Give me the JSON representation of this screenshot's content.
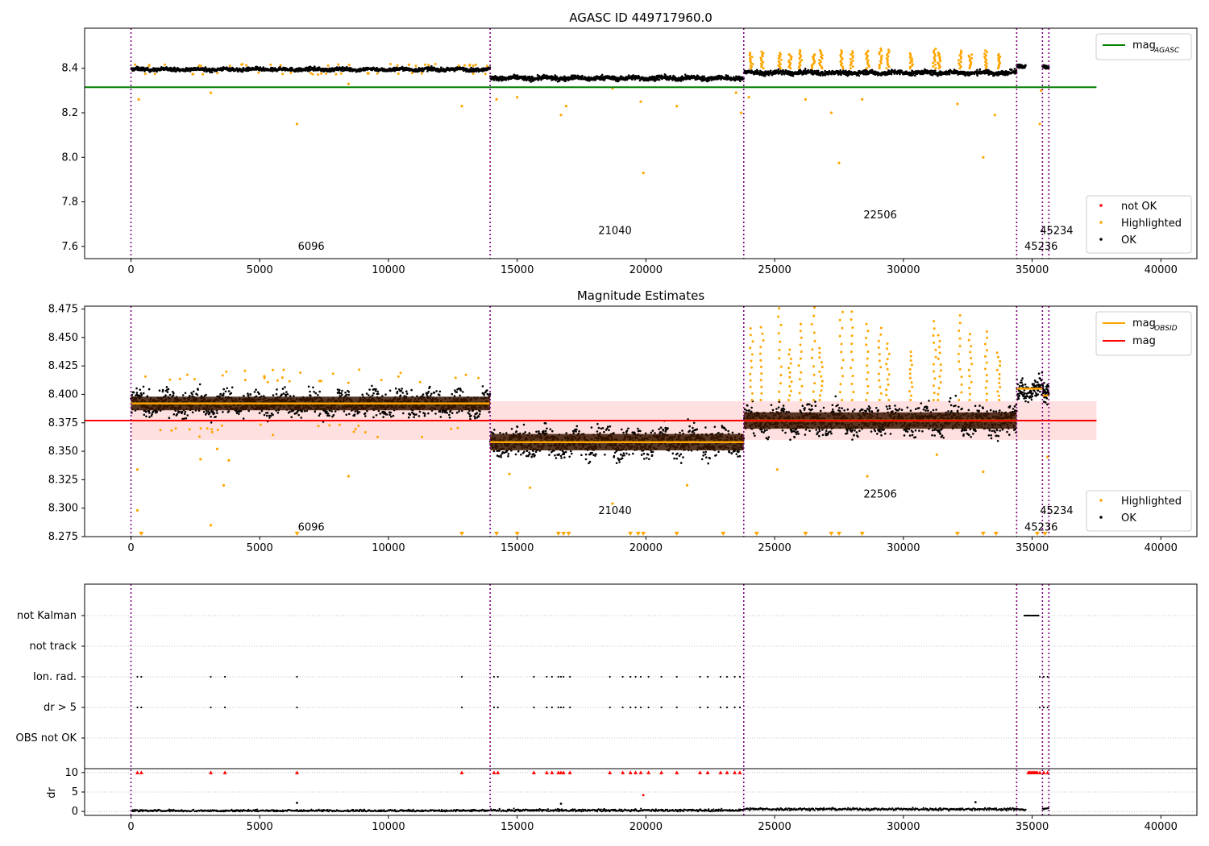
{
  "chart_data": [
    {
      "type": "scatter",
      "title": "AGASC ID 449717960.0",
      "xlim": [
        -1800,
        41400
      ],
      "ylim": [
        7.545,
        8.58
      ],
      "xticks": [
        "0",
        "5000",
        "10000",
        "15000",
        "20000",
        "25000",
        "30000",
        "35000",
        "40000"
      ],
      "xtick_values": [
        0,
        5000,
        10000,
        15000,
        20000,
        25000,
        30000,
        35000,
        40000
      ],
      "yticks": [
        "7.6",
        "7.8",
        "8.0",
        "8.2",
        "8.4"
      ],
      "ytick_values": [
        7.6,
        7.8,
        8.0,
        8.2,
        8.4
      ],
      "obs_boundaries": [
        0,
        13950,
        23800,
        34400,
        35400,
        35650
      ],
      "obs_labels": [
        {
          "text": "6096",
          "x": 7000,
          "y": 7.6
        },
        {
          "text": "21040",
          "x": 18800,
          "y": 7.67
        },
        {
          "text": "22506",
          "x": 29100,
          "y": 7.74
        },
        {
          "text": "45234",
          "x": 35950,
          "y": 7.67
        },
        {
          "text": "45236",
          "x": 35350,
          "y": 7.6
        }
      ],
      "legend_top": {
        "position": "upper right",
        "entries": [
          {
            "label": "mag",
            "sub": "AGASC",
            "color": "#008000"
          }
        ]
      },
      "legend_bottom": {
        "position": "lower right",
        "entries": [
          {
            "label": "not OK",
            "color": "#ff0000"
          },
          {
            "label": "Highlighted",
            "color": "#ffa500"
          },
          {
            "label": "OK",
            "color": "#000000"
          }
        ]
      },
      "mag_agasc": {
        "value": 8.315,
        "x_range": [
          -1800,
          37500
        ],
        "color": "#008000"
      },
      "segments": [
        {
          "x0": 0,
          "x1": 13950,
          "level": 8.395,
          "spread": 0.008
        },
        {
          "x0": 13950,
          "x1": 23800,
          "level": 8.356,
          "spread": 0.01
        },
        {
          "x0": 23800,
          "x1": 34400,
          "level": 8.38,
          "spread": 0.01
        },
        {
          "x0": 34400,
          "x1": 34750,
          "level": 8.41,
          "spread": 0.008
        },
        {
          "x0": 35400,
          "x1": 35650,
          "level": 8.405,
          "spread": 0.008
        }
      ],
      "highlighted_points": [
        {
          "x": 6450,
          "y": 8.15
        },
        {
          "x": 3100,
          "y": 8.29
        },
        {
          "x": 300,
          "y": 8.26
        },
        {
          "x": 12850,
          "y": 8.23
        },
        {
          "x": 8450,
          "y": 8.33
        },
        {
          "x": 14200,
          "y": 8.26
        },
        {
          "x": 15000,
          "y": 8.27
        },
        {
          "x": 16700,
          "y": 8.19
        },
        {
          "x": 16900,
          "y": 8.23
        },
        {
          "x": 18700,
          "y": 8.31
        },
        {
          "x": 19900,
          "y": 7.93
        },
        {
          "x": 19800,
          "y": 8.25
        },
        {
          "x": 21200,
          "y": 8.23
        },
        {
          "x": 23700,
          "y": 8.2
        },
        {
          "x": 23500,
          "y": 8.29
        },
        {
          "x": 27200,
          "y": 8.2
        },
        {
          "x": 27500,
          "y": 7.975
        },
        {
          "x": 28400,
          "y": 8.26
        },
        {
          "x": 26200,
          "y": 8.26
        },
        {
          "x": 32100,
          "y": 8.24
        },
        {
          "x": 33100,
          "y": 8.0
        },
        {
          "x": 33550,
          "y": 8.19
        },
        {
          "x": 35300,
          "y": 8.15
        },
        {
          "x": 35350,
          "y": 8.3
        },
        {
          "x": 24000,
          "y": 8.27
        }
      ],
      "peaks": [
        24100,
        24500,
        25200,
        25600,
        26000,
        26500,
        26800,
        27600,
        28000,
        28600,
        29100,
        29400,
        30300,
        31200,
        31400,
        32200,
        32600,
        33200,
        33700
      ]
    },
    {
      "type": "scatter",
      "title": "Magnitude Estimates",
      "xlim": [
        -1800,
        41400
      ],
      "ylim": [
        8.275,
        8.4775
      ],
      "xticks": [
        "0",
        "5000",
        "10000",
        "15000",
        "20000",
        "25000",
        "30000",
        "35000",
        "40000"
      ],
      "xtick_values": [
        0,
        5000,
        10000,
        15000,
        20000,
        25000,
        30000,
        35000,
        40000
      ],
      "yticks": [
        "8.275",
        "8.300",
        "8.325",
        "8.350",
        "8.375",
        "8.400",
        "8.425",
        "8.450",
        "8.475"
      ],
      "ytick_values": [
        8.275,
        8.3,
        8.325,
        8.35,
        8.375,
        8.4,
        8.425,
        8.45,
        8.475
      ],
      "obs_boundaries": [
        0,
        13950,
        23800,
        34400,
        35400,
        35650
      ],
      "obs_labels": [
        {
          "text": "6096",
          "x": 7000,
          "y": 8.283
        },
        {
          "text": "21040",
          "x": 18800,
          "y": 8.2975
        },
        {
          "text": "22506",
          "x": 29100,
          "y": 8.312
        },
        {
          "text": "45234",
          "x": 35950,
          "y": 8.2975
        },
        {
          "text": "45236",
          "x": 35350,
          "y": 8.283
        }
      ],
      "legend_top": {
        "position": "upper right",
        "entries": [
          {
            "label": "mag",
            "sub": "OBSID",
            "color": "#ffa500"
          },
          {
            "label": "mag",
            "sub": "",
            "color": "#ff0000"
          }
        ]
      },
      "legend_bottom": {
        "position": "lower right",
        "entries": [
          {
            "label": "Highlighted",
            "color": "#ffa500"
          },
          {
            "label": "OK",
            "color": "#000000"
          }
        ]
      },
      "mag": {
        "value": 8.377,
        "band": [
          8.36,
          8.394
        ],
        "x_range": [
          -1800,
          37500
        ],
        "color": "#ff0000"
      },
      "mag_obsid": [
        {
          "x0": 0,
          "x1": 13950,
          "value": 8.392
        },
        {
          "x0": 13950,
          "x1": 23800,
          "value": 8.358
        },
        {
          "x0": 23800,
          "x1": 34400,
          "value": 8.377
        },
        {
          "x0": 34400,
          "x1": 35400,
          "value": 8.405
        },
        {
          "x0": 35400,
          "x1": 35650,
          "value": 8.399
        }
      ],
      "segments": [
        {
          "x0": 0,
          "x1": 13950,
          "level": 8.392,
          "spread": 0.01
        },
        {
          "x0": 13950,
          "x1": 23800,
          "level": 8.358,
          "spread": 0.012
        },
        {
          "x0": 23800,
          "x1": 34400,
          "level": 8.377,
          "spread": 0.012
        },
        {
          "x0": 34400,
          "x1": 35400,
          "level": 8.405,
          "spread": 0.01
        },
        {
          "x0": 35400,
          "x1": 35650,
          "level": 8.399,
          "spread": 0.01
        }
      ],
      "highlighted_points": [
        {
          "x": 3100,
          "y": 8.285
        },
        {
          "x": 3600,
          "y": 8.32
        },
        {
          "x": 2700,
          "y": 8.343
        },
        {
          "x": 3800,
          "y": 8.342
        },
        {
          "x": 3350,
          "y": 8.352
        },
        {
          "x": 8450,
          "y": 8.328
        },
        {
          "x": 250,
          "y": 8.298
        },
        {
          "x": 250,
          "y": 8.334
        },
        {
          "x": 14700,
          "y": 8.33
        },
        {
          "x": 15500,
          "y": 8.318
        },
        {
          "x": 18700,
          "y": 8.304
        },
        {
          "x": 21600,
          "y": 8.32
        },
        {
          "x": 25100,
          "y": 8.334
        },
        {
          "x": 28600,
          "y": 8.328
        },
        {
          "x": 31300,
          "y": 8.347
        },
        {
          "x": 33100,
          "y": 8.332
        },
        {
          "x": 35600,
          "y": 8.345
        }
      ],
      "triangles_x": [
        400,
        6450,
        12850,
        14200,
        15000,
        16600,
        16800,
        17000,
        19400,
        19700,
        19900,
        21200,
        23000,
        24300,
        26200,
        27200,
        27500,
        28400,
        32100,
        33100,
        33600,
        35200,
        35500
      ],
      "peaks": [
        24100,
        24500,
        25200,
        25600,
        26000,
        26500,
        26800,
        27600,
        28000,
        28600,
        29100,
        29400,
        30300,
        31200,
        31400,
        32200,
        32600,
        33200,
        33700
      ]
    },
    {
      "type": "scatter",
      "title": "",
      "xlim": [
        -1800,
        41400
      ],
      "xticks": [
        "0",
        "5000",
        "10000",
        "15000",
        "20000",
        "25000",
        "30000",
        "35000",
        "40000"
      ],
      "xtick_values": [
        0,
        5000,
        10000,
        15000,
        20000,
        25000,
        30000,
        35000,
        40000
      ],
      "flag_labels": [
        "not Kalman",
        "not track",
        "Ion. rad.",
        "dr > 5",
        "OBS not OK"
      ],
      "obs_boundaries": [
        0,
        13950,
        23800,
        34400,
        35400,
        35650
      ],
      "flag_points": [
        {
          "flag": "not Kalman",
          "x": [
            34700,
            34750,
            34800,
            34850,
            34900,
            34950,
            35000,
            35050,
            35100,
            35150,
            35200,
            35250
          ]
        },
        {
          "flag": "not track",
          "x": []
        },
        {
          "flag": "Ion. rad.",
          "x": [
            250,
            400,
            3100,
            3650,
            6450,
            12850,
            14100,
            14250,
            15650,
            16150,
            16350,
            16600,
            16700,
            16800,
            17050,
            18600,
            19100,
            19400,
            19600,
            19800,
            20100,
            20600,
            21200,
            22100,
            22400,
            22900,
            23150,
            23450,
            23650,
            35300,
            35450,
            35600
          ]
        },
        {
          "flag": "dr > 5",
          "x": [
            250,
            400,
            3100,
            3650,
            6450,
            12850,
            14100,
            14250,
            15650,
            16150,
            16350,
            16600,
            16700,
            16800,
            17050,
            18600,
            19100,
            19400,
            19600,
            19800,
            20100,
            20600,
            21200,
            22100,
            22400,
            22900,
            23150,
            23450,
            23650,
            35300,
            35450,
            35600
          ]
        },
        {
          "flag": "OBS not OK",
          "x": []
        }
      ],
      "dr": {
        "ylabel": "dr",
        "yticks": [
          "0",
          "5",
          "10"
        ],
        "ytick_values": [
          0,
          5,
          10
        ],
        "ylim": [
          -1,
          11
        ],
        "clipped_x": [
          250,
          400,
          3100,
          3650,
          6450,
          12850,
          14100,
          14250,
          15650,
          16150,
          16350,
          16600,
          16700,
          16800,
          17050,
          18600,
          19100,
          19400,
          19600,
          19800,
          20100,
          20600,
          21200,
          22100,
          22400,
          22900,
          23150,
          23450,
          23650,
          34850,
          34900,
          34950,
          35000,
          35050,
          35100,
          35150,
          35200,
          35300,
          35450,
          35600
        ],
        "outliers": [
          {
            "x": 19900,
            "y": 4.2,
            "notok": true
          },
          {
            "x": 6450,
            "y": 2.2,
            "notok": false
          },
          {
            "x": 16700,
            "y": 2.0,
            "notok": false
          },
          {
            "x": 32800,
            "y": 2.4,
            "notok": false
          }
        ]
      }
    }
  ]
}
